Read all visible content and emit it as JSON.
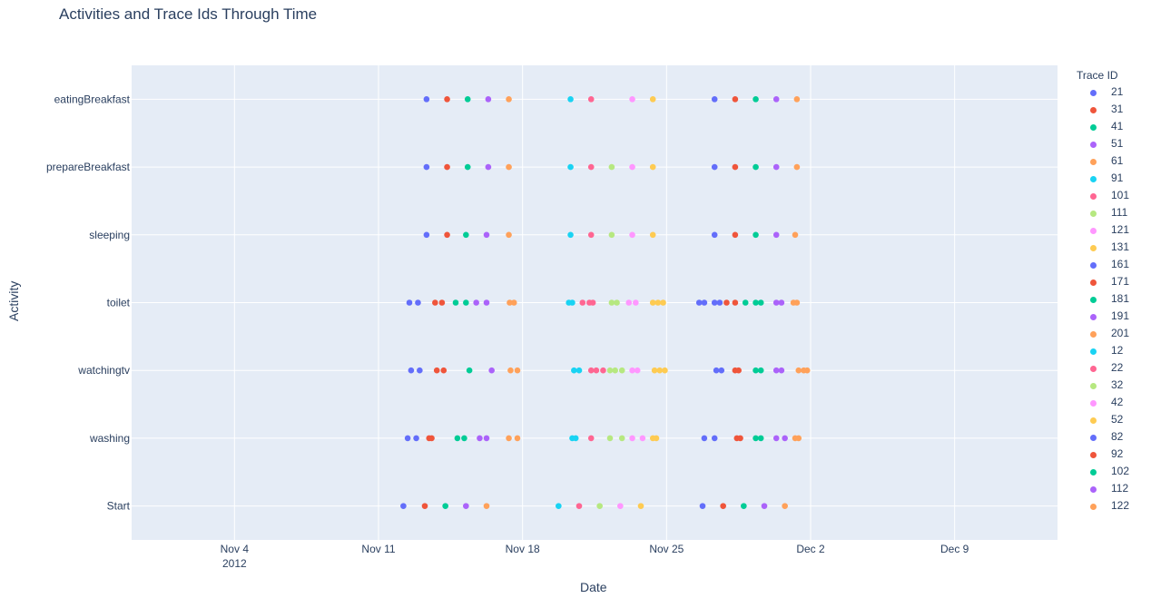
{
  "chart_data": {
    "type": "scatter",
    "title": "Activities and Trace Ids Through Time",
    "xlabel": "Date",
    "ylabel": "Activity",
    "legend_title": "Trace ID",
    "legend_placement": "right",
    "grid": true,
    "x_range": [
      "2012-10-30",
      "2012-12-14"
    ],
    "x_ticks": [
      {
        "date": "2012-11-04",
        "label": "Nov 4",
        "sublabel": "2012"
      },
      {
        "date": "2012-11-11",
        "label": "Nov 11",
        "sublabel": ""
      },
      {
        "date": "2012-11-18",
        "label": "Nov 18",
        "sublabel": ""
      },
      {
        "date": "2012-11-25",
        "label": "Nov 25",
        "sublabel": ""
      },
      {
        "date": "2012-12-02",
        "label": "Dec 2",
        "sublabel": ""
      },
      {
        "date": "2012-12-09",
        "label": "Dec 9",
        "sublabel": ""
      }
    ],
    "categories": [
      "Start",
      "washing",
      "watchingtv",
      "toilet",
      "sleeping",
      "prepareBreakfast",
      "eatingBreakfast"
    ],
    "series": [
      {
        "name": "21",
        "color": "#636efa",
        "points": [
          [
            "2012-11-12T05:00",
            "Start"
          ],
          [
            "2012-11-13T08:00",
            "eatingBreakfast"
          ],
          [
            "2012-11-13T08:00",
            "prepareBreakfast"
          ],
          [
            "2012-11-13T08:00",
            "sleeping"
          ],
          [
            "2012-11-12T12:00",
            "toilet"
          ],
          [
            "2012-11-12T22:00",
            "toilet"
          ],
          [
            "2012-11-12T14:00",
            "watchingtv"
          ],
          [
            "2012-11-13T00:00",
            "watchingtv"
          ],
          [
            "2012-11-12T10:00",
            "washing"
          ],
          [
            "2012-11-12T20:00",
            "washing"
          ]
        ]
      },
      {
        "name": "31",
        "color": "#EF553B",
        "points": [
          [
            "2012-11-13T06:00",
            "Start"
          ],
          [
            "2012-11-14T08:00",
            "eatingBreakfast"
          ],
          [
            "2012-11-14T08:00",
            "prepareBreakfast"
          ],
          [
            "2012-11-14T08:00",
            "sleeping"
          ],
          [
            "2012-11-13T18:00",
            "toilet"
          ],
          [
            "2012-11-14T02:00",
            "toilet"
          ],
          [
            "2012-11-13T20:00",
            "watchingtv"
          ],
          [
            "2012-11-14T04:00",
            "watchingtv"
          ],
          [
            "2012-11-13T11:00",
            "washing"
          ],
          [
            "2012-11-13T14:00",
            "washing"
          ]
        ]
      },
      {
        "name": "41",
        "color": "#00cc96",
        "points": [
          [
            "2012-11-14T06:00",
            "Start"
          ],
          [
            "2012-11-15T08:00",
            "eatingBreakfast"
          ],
          [
            "2012-11-15T08:00",
            "prepareBreakfast"
          ],
          [
            "2012-11-15T06:00",
            "sleeping"
          ],
          [
            "2012-11-14T18:00",
            "toilet"
          ],
          [
            "2012-11-15T06:00",
            "toilet"
          ],
          [
            "2012-11-15T10:00",
            "watchingtv"
          ],
          [
            "2012-11-14T20:00",
            "washing"
          ],
          [
            "2012-11-15T04:00",
            "washing"
          ]
        ]
      },
      {
        "name": "51",
        "color": "#ab63fa",
        "points": [
          [
            "2012-11-15T06:00",
            "Start"
          ],
          [
            "2012-11-16T08:00",
            "eatingBreakfast"
          ],
          [
            "2012-11-16T08:00",
            "prepareBreakfast"
          ],
          [
            "2012-11-16T06:00",
            "sleeping"
          ],
          [
            "2012-11-15T18:00",
            "toilet"
          ],
          [
            "2012-11-16T06:00",
            "toilet"
          ],
          [
            "2012-11-16T12:00",
            "watchingtv"
          ],
          [
            "2012-11-15T22:00",
            "washing"
          ],
          [
            "2012-11-16T06:00",
            "washing"
          ]
        ]
      },
      {
        "name": "61",
        "color": "#FFA15A",
        "points": [
          [
            "2012-11-16T06:00",
            "Start"
          ],
          [
            "2012-11-17T08:00",
            "eatingBreakfast"
          ],
          [
            "2012-11-17T08:00",
            "prepareBreakfast"
          ],
          [
            "2012-11-17T08:00",
            "sleeping"
          ],
          [
            "2012-11-17T09:00",
            "toilet"
          ],
          [
            "2012-11-17T14:00",
            "toilet"
          ],
          [
            "2012-11-17T10:00",
            "watchingtv"
          ],
          [
            "2012-11-17T18:00",
            "watchingtv"
          ],
          [
            "2012-11-17T08:00",
            "washing"
          ],
          [
            "2012-11-17T18:00",
            "washing"
          ]
        ]
      },
      {
        "name": "91",
        "color": "#19d3f3",
        "points": [
          [
            "2012-11-19T18:00",
            "Start"
          ],
          [
            "2012-11-20T08:00",
            "eatingBreakfast"
          ],
          [
            "2012-11-20T08:00",
            "prepareBreakfast"
          ],
          [
            "2012-11-20T08:00",
            "sleeping"
          ],
          [
            "2012-11-20T10:00",
            "toilet"
          ],
          [
            "2012-11-20T14:00",
            "washing"
          ]
        ]
      },
      {
        "name": "101",
        "color": "#FF6692",
        "points": [
          [
            "2012-11-20T18:00",
            "Start"
          ],
          [
            "2012-11-21T08:00",
            "eatingBreakfast"
          ],
          [
            "2012-11-21T08:00",
            "prepareBreakfast"
          ],
          [
            "2012-11-21T08:00",
            "sleeping"
          ],
          [
            "2012-11-20T22:00",
            "toilet"
          ],
          [
            "2012-11-21T10:00",
            "toilet"
          ],
          [
            "2012-11-21T08:00",
            "watchingtv"
          ],
          [
            "2012-11-21T08:00",
            "washing"
          ]
        ]
      },
      {
        "name": "111",
        "color": "#B6E880",
        "points": [
          [
            "2012-11-21T18:00",
            "Start"
          ],
          [
            "2012-11-22T08:00",
            "prepareBreakfast"
          ],
          [
            "2012-11-22T08:00",
            "sleeping"
          ],
          [
            "2012-11-22T08:00",
            "toilet"
          ],
          [
            "2012-11-22T06:00",
            "watchingtv"
          ],
          [
            "2012-11-22T06:00",
            "washing"
          ]
        ]
      },
      {
        "name": "121",
        "color": "#FF97FF",
        "points": [
          [
            "2012-11-22T18:00",
            "Start"
          ],
          [
            "2012-11-23T08:00",
            "eatingBreakfast"
          ],
          [
            "2012-11-23T08:00",
            "prepareBreakfast"
          ],
          [
            "2012-11-23T08:00",
            "sleeping"
          ],
          [
            "2012-11-23T04:00",
            "toilet"
          ],
          [
            "2012-11-23T08:00",
            "watchingtv"
          ],
          [
            "2012-11-23T08:00",
            "washing"
          ]
        ]
      },
      {
        "name": "131",
        "color": "#FECB52",
        "points": [
          [
            "2012-11-23T18:00",
            "Start"
          ],
          [
            "2012-11-24T08:00",
            "eatingBreakfast"
          ],
          [
            "2012-11-24T08:00",
            "prepareBreakfast"
          ],
          [
            "2012-11-24T08:00",
            "sleeping"
          ],
          [
            "2012-11-24T08:00",
            "toilet"
          ],
          [
            "2012-11-24T14:00",
            "toilet"
          ],
          [
            "2012-11-24T10:00",
            "watchingtv"
          ],
          [
            "2012-11-24T08:00",
            "washing"
          ]
        ]
      },
      {
        "name": "161",
        "color": "#636efa",
        "points": [
          [
            "2012-11-26T18:00",
            "Start"
          ],
          [
            "2012-11-27T08:00",
            "eatingBreakfast"
          ],
          [
            "2012-11-27T08:00",
            "prepareBreakfast"
          ],
          [
            "2012-11-27T08:00",
            "sleeping"
          ],
          [
            "2012-11-26T20:00",
            "toilet"
          ],
          [
            "2012-11-27T08:00",
            "toilet"
          ],
          [
            "2012-11-27T10:00",
            "watchingtv"
          ],
          [
            "2012-11-27T16:00",
            "watchingtv"
          ],
          [
            "2012-11-27T08:00",
            "washing"
          ]
        ]
      },
      {
        "name": "171",
        "color": "#EF553B",
        "points": [
          [
            "2012-11-27T18:00",
            "Start"
          ],
          [
            "2012-11-28T08:00",
            "eatingBreakfast"
          ],
          [
            "2012-11-28T08:00",
            "prepareBreakfast"
          ],
          [
            "2012-11-28T08:00",
            "sleeping"
          ],
          [
            "2012-11-28T08:00",
            "toilet"
          ],
          [
            "2012-11-28T08:00",
            "watchingtv"
          ],
          [
            "2012-11-28T10:00",
            "washing"
          ]
        ]
      },
      {
        "name": "181",
        "color": "#00cc96",
        "points": [
          [
            "2012-11-28T18:00",
            "Start"
          ],
          [
            "2012-11-29T08:00",
            "eatingBreakfast"
          ],
          [
            "2012-11-29T08:00",
            "prepareBreakfast"
          ],
          [
            "2012-11-29T08:00",
            "sleeping"
          ],
          [
            "2012-11-29T08:00",
            "toilet"
          ],
          [
            "2012-11-29T08:00",
            "watchingtv"
          ],
          [
            "2012-11-29T08:00",
            "washing"
          ]
        ]
      },
      {
        "name": "191",
        "color": "#ab63fa",
        "points": [
          [
            "2012-11-29T18:00",
            "Start"
          ],
          [
            "2012-11-30T08:00",
            "eatingBreakfast"
          ],
          [
            "2012-11-30T08:00",
            "prepareBreakfast"
          ],
          [
            "2012-11-30T08:00",
            "sleeping"
          ],
          [
            "2012-11-30T08:00",
            "toilet"
          ],
          [
            "2012-11-30T08:00",
            "watchingtv"
          ],
          [
            "2012-11-30T08:00",
            "washing"
          ]
        ]
      },
      {
        "name": "201",
        "color": "#FFA15A",
        "points": [
          [
            "2012-11-30T18:00",
            "Start"
          ],
          [
            "2012-12-01T08:00",
            "eatingBreakfast"
          ],
          [
            "2012-12-01T08:00",
            "prepareBreakfast"
          ],
          [
            "2012-12-01T06:00",
            "sleeping"
          ],
          [
            "2012-12-01T08:00",
            "toilet"
          ],
          [
            "2012-12-01T10:00",
            "watchingtv"
          ],
          [
            "2012-12-01T06:00",
            "washing"
          ]
        ]
      },
      {
        "name": "12",
        "color": "#19d3f3",
        "points": [
          [
            "2012-11-20T06:00",
            "toilet"
          ],
          [
            "2012-11-20T12:00",
            "watchingtv"
          ],
          [
            "2012-11-20T18:00",
            "watchingtv"
          ],
          [
            "2012-11-20T10:00",
            "washing"
          ]
        ]
      },
      {
        "name": "22",
        "color": "#FF6692",
        "points": [
          [
            "2012-11-21T06:00",
            "toilet"
          ],
          [
            "2012-11-21T14:00",
            "watchingtv"
          ],
          [
            "2012-11-21T22:00",
            "watchingtv"
          ]
        ]
      },
      {
        "name": "32",
        "color": "#B6E880",
        "points": [
          [
            "2012-11-22T14:00",
            "toilet"
          ],
          [
            "2012-11-22T12:00",
            "watchingtv"
          ],
          [
            "2012-11-22T20:00",
            "watchingtv"
          ],
          [
            "2012-11-22T20:00",
            "washing"
          ]
        ]
      },
      {
        "name": "42",
        "color": "#FF97FF",
        "points": [
          [
            "2012-11-23T12:00",
            "toilet"
          ],
          [
            "2012-11-23T14:00",
            "watchingtv"
          ],
          [
            "2012-11-23T20:00",
            "washing"
          ]
        ]
      },
      {
        "name": "52",
        "color": "#FECB52",
        "points": [
          [
            "2012-11-24T20:00",
            "toilet"
          ],
          [
            "2012-11-24T16:00",
            "watchingtv"
          ],
          [
            "2012-11-24T22:00",
            "watchingtv"
          ],
          [
            "2012-11-24T12:00",
            "washing"
          ]
        ]
      },
      {
        "name": "82",
        "color": "#636efa",
        "points": [
          [
            "2012-11-26T14:00",
            "toilet"
          ],
          [
            "2012-11-27T14:00",
            "toilet"
          ],
          [
            "2012-11-26T20:00",
            "washing"
          ]
        ]
      },
      {
        "name": "92",
        "color": "#EF553B",
        "points": [
          [
            "2012-11-27T22:00",
            "toilet"
          ],
          [
            "2012-11-28T12:00",
            "watchingtv"
          ],
          [
            "2012-11-28T14:00",
            "washing"
          ]
        ]
      },
      {
        "name": "102",
        "color": "#00cc96",
        "points": [
          [
            "2012-11-28T20:00",
            "toilet"
          ],
          [
            "2012-11-29T14:00",
            "toilet"
          ],
          [
            "2012-11-29T14:00",
            "watchingtv"
          ],
          [
            "2012-11-29T14:00",
            "washing"
          ]
        ]
      },
      {
        "name": "112",
        "color": "#ab63fa",
        "points": [
          [
            "2012-11-30T14:00",
            "toilet"
          ],
          [
            "2012-11-30T14:00",
            "watchingtv"
          ],
          [
            "2012-11-30T18:00",
            "washing"
          ]
        ]
      },
      {
        "name": "122",
        "color": "#FFA15A",
        "points": [
          [
            "2012-12-01T04:00",
            "toilet"
          ],
          [
            "2012-12-01T16:00",
            "watchingtv"
          ],
          [
            "2012-12-01T20:00",
            "watchingtv"
          ],
          [
            "2012-12-01T10:00",
            "washing"
          ]
        ]
      }
    ]
  }
}
